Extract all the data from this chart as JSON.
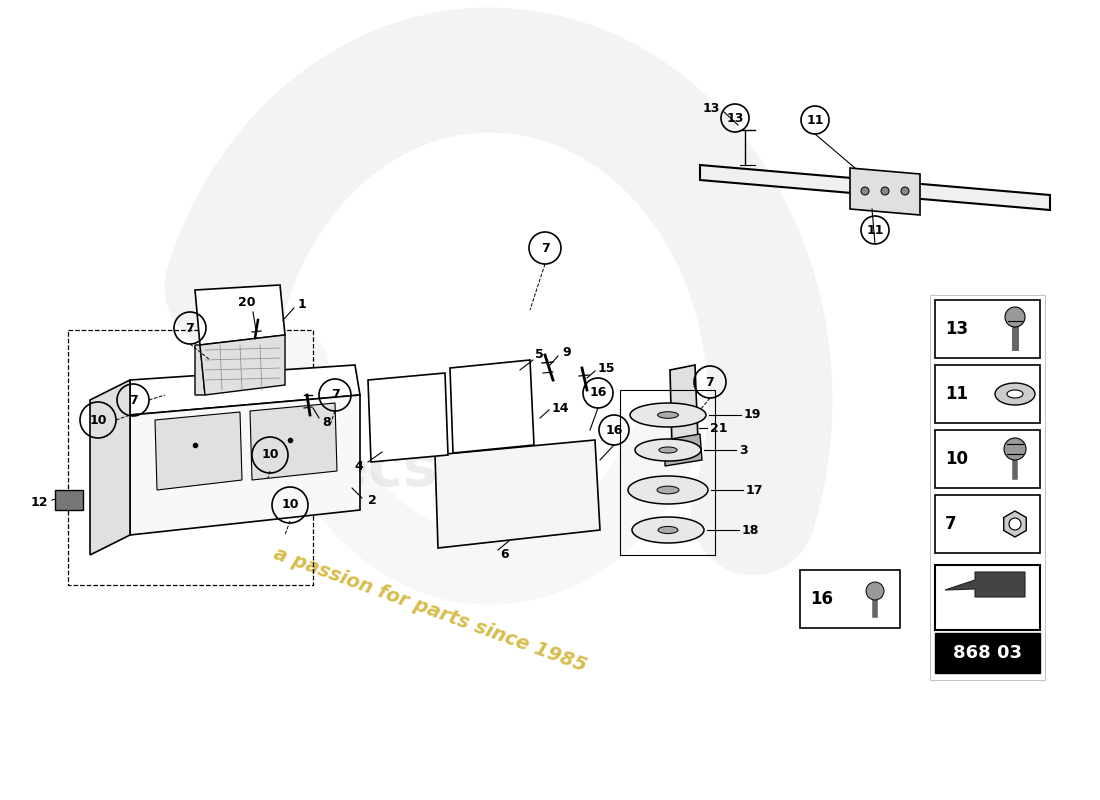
{
  "bg_color": "#ffffff",
  "watermark_text": "a passion for parts since 1985",
  "part_number": "868 03",
  "watermark_color": "#c8a000",
  "logo_color": "#cccccc",
  "line_color": "#000000",
  "part_fill": "#ffffff",
  "part_shade": "#e0e0e0",
  "part_dark": "#b0b0b0"
}
